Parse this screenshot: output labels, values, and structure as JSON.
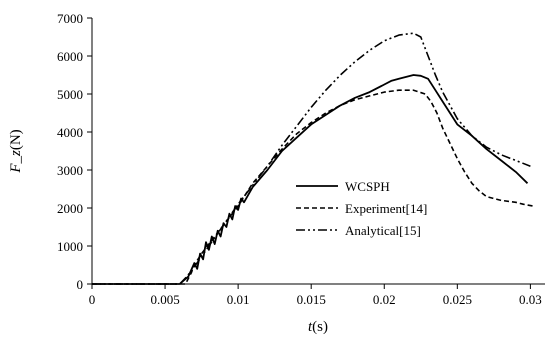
{
  "chart_data": {
    "type": "line",
    "title": "",
    "xlabel": {
      "symbol": "t",
      "unit": "(s)"
    },
    "ylabel": {
      "symbol": "F_z",
      "unit": "(N)"
    },
    "xlim": [
      0,
      0.031
    ],
    "ylim": [
      0,
      7000
    ],
    "x_ticks": [
      "0",
      "0.005",
      "0.01",
      "0.015",
      "0.02",
      "0.025",
      "0.03"
    ],
    "x_tick_values": [
      0,
      0.005,
      0.01,
      0.015,
      0.02,
      0.025,
      0.03
    ],
    "y_ticks": [
      "0",
      "1000",
      "2000",
      "3000",
      "4000",
      "5000",
      "6000",
      "7000"
    ],
    "y_tick_values": [
      0,
      1000,
      2000,
      3000,
      4000,
      5000,
      6000,
      7000
    ],
    "grid": false,
    "legend_position": "lower-right",
    "series": [
      {
        "name": "WCSPH",
        "dash": "solid",
        "x": [
          0,
          0.006,
          0.0066,
          0.007,
          0.0072,
          0.0074,
          0.0076,
          0.0078,
          0.008,
          0.0082,
          0.0084,
          0.0086,
          0.0088,
          0.009,
          0.0092,
          0.0094,
          0.0096,
          0.0098,
          0.01,
          0.0102,
          0.0104,
          0.011,
          0.012,
          0.013,
          0.014,
          0.015,
          0.016,
          0.017,
          0.018,
          0.019,
          0.02,
          0.0205,
          0.021,
          0.0215,
          0.022,
          0.0225,
          0.023,
          0.0235,
          0.024,
          0.0245,
          0.025,
          0.026,
          0.027,
          0.028,
          0.029,
          0.0298
        ],
        "y": [
          0,
          0,
          200,
          550,
          400,
          800,
          650,
          1100,
          900,
          1250,
          1050,
          1400,
          1250,
          1600,
          1500,
          1850,
          1700,
          2050,
          1950,
          2250,
          2150,
          2550,
          3000,
          3500,
          3850,
          4200,
          4450,
          4700,
          4900,
          5050,
          5250,
          5350,
          5400,
          5450,
          5500,
          5480,
          5400,
          5100,
          4800,
          4500,
          4200,
          3900,
          3550,
          3250,
          2950,
          2650
        ]
      },
      {
        "name": "Experiment[14]",
        "dash": "dashed",
        "x": [
          0,
          0.0064,
          0.0068,
          0.007,
          0.0075,
          0.008,
          0.0085,
          0.009,
          0.0095,
          0.01,
          0.011,
          0.012,
          0.013,
          0.014,
          0.015,
          0.016,
          0.017,
          0.018,
          0.019,
          0.02,
          0.021,
          0.022,
          0.0228,
          0.0232,
          0.0236,
          0.024,
          0.0245,
          0.025,
          0.0255,
          0.026,
          0.0265,
          0.027,
          0.028,
          0.029,
          0.0295,
          0.0302
        ],
        "y": [
          0,
          0,
          300,
          500,
          800,
          1050,
          1300,
          1550,
          1800,
          2050,
          2650,
          3100,
          3550,
          3950,
          4250,
          4500,
          4700,
          4850,
          4950,
          5050,
          5100,
          5100,
          5000,
          4800,
          4500,
          4100,
          3700,
          3300,
          2950,
          2650,
          2450,
          2300,
          2200,
          2150,
          2100,
          2050
        ]
      },
      {
        "name": "Analytical[15]",
        "dash": "dashdotdot",
        "x": [
          0,
          0.006,
          0.0065,
          0.007,
          0.008,
          0.009,
          0.01,
          0.011,
          0.012,
          0.013,
          0.014,
          0.015,
          0.016,
          0.017,
          0.018,
          0.019,
          0.02,
          0.021,
          0.022,
          0.0225,
          0.023,
          0.0235,
          0.024,
          0.025,
          0.026,
          0.027,
          0.028,
          0.029,
          0.03
        ],
        "y": [
          0,
          0,
          200,
          450,
          1000,
          1550,
          2100,
          2600,
          3100,
          3650,
          4150,
          4650,
          5100,
          5500,
          5850,
          6150,
          6400,
          6550,
          6600,
          6500,
          6000,
          5500,
          5050,
          4350,
          3900,
          3600,
          3400,
          3250,
          3100
        ]
      }
    ]
  }
}
